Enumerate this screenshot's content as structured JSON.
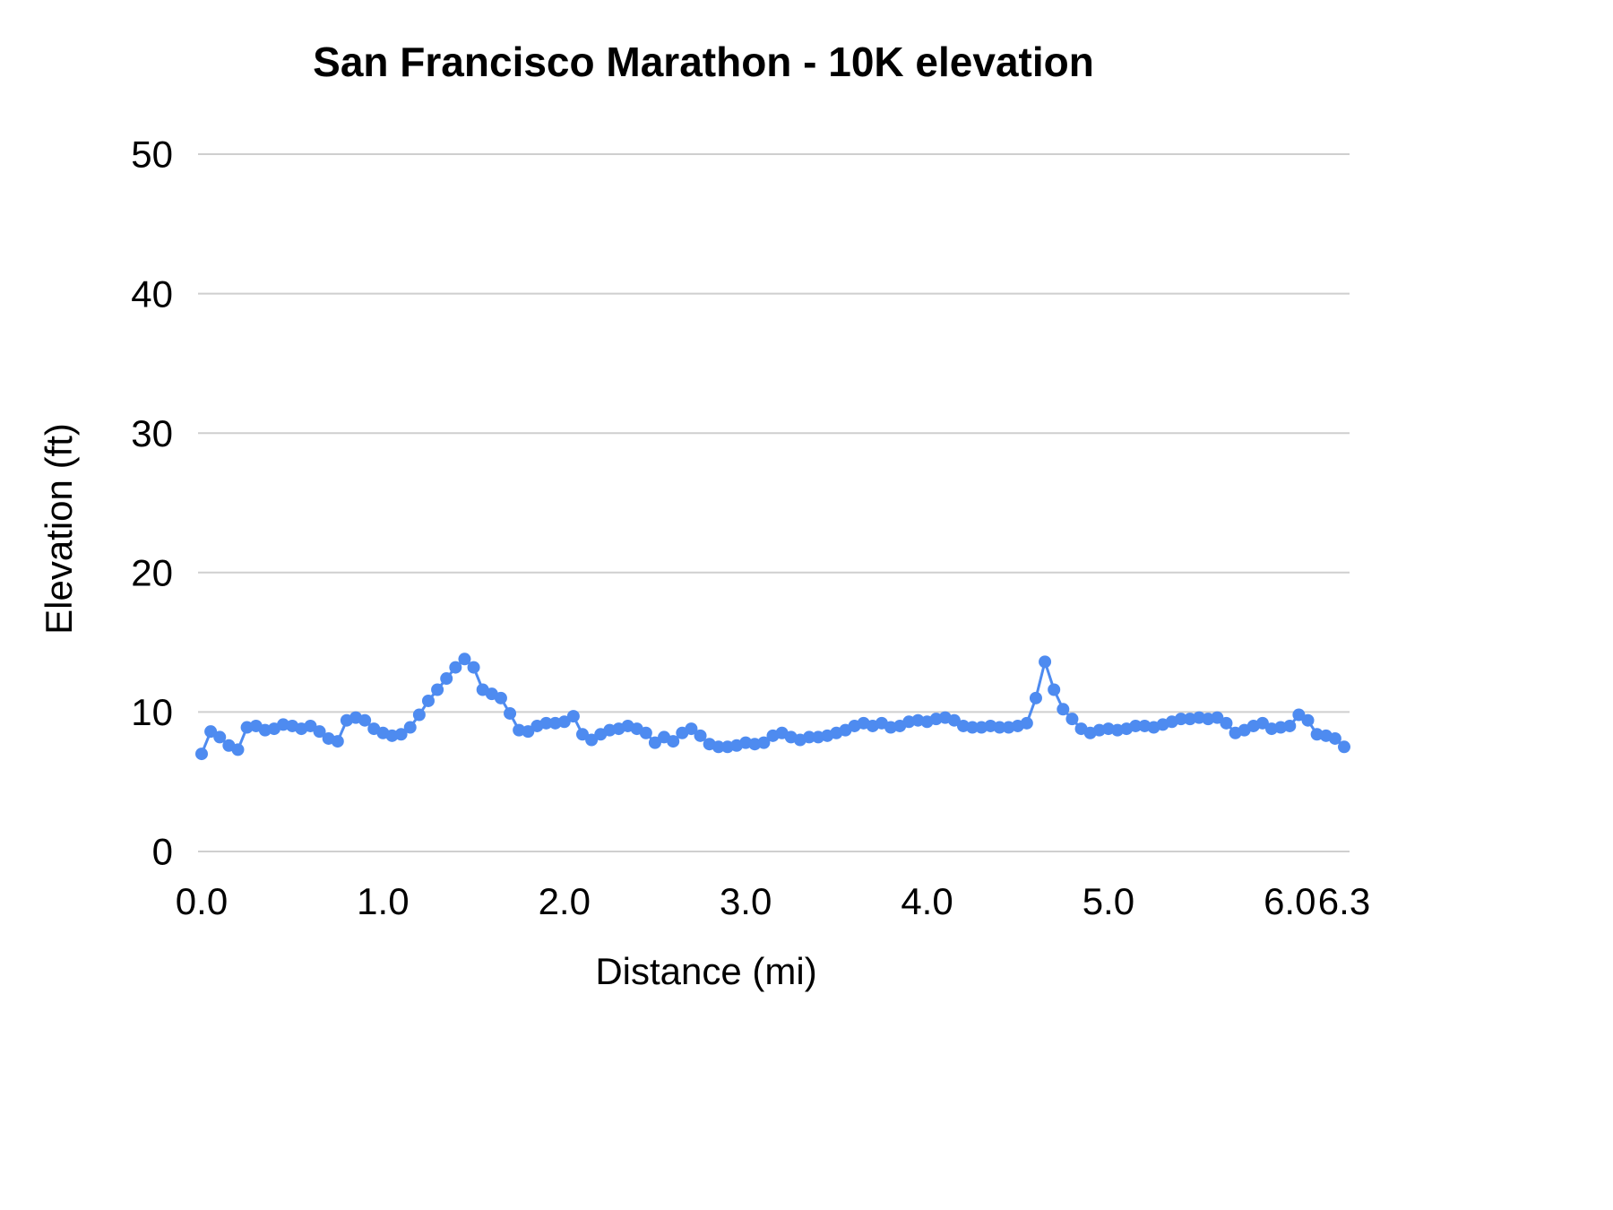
{
  "chart_data": {
    "type": "scatter",
    "title": "San Francisco Marathon - 10K elevation",
    "xlabel": "Distance (mi)",
    "ylabel": "Elevation (ft)",
    "xlim": [
      0,
      6.3
    ],
    "ylim": [
      0,
      50
    ],
    "xticks": [
      0,
      1,
      2,
      3,
      4,
      5,
      6,
      6.3
    ],
    "xtick_labels": [
      "0.0",
      "1.0",
      "2.0",
      "3.0",
      "4.0",
      "5.0",
      "6.0",
      "6.3"
    ],
    "yticks": [
      0,
      10,
      20,
      30,
      40,
      50
    ],
    "ytick_labels": [
      "0",
      "10",
      "20",
      "30",
      "40",
      "50"
    ],
    "grid": "horizontal",
    "legend": "none",
    "marker_color": "#4e8bf0",
    "line_color": "#4e8bf0",
    "gridline_color": "#cfcfcf",
    "text_color": "#000000",
    "series_name": "elevation",
    "x": [
      0,
      0.05,
      0.1,
      0.15,
      0.2,
      0.25,
      0.3,
      0.35,
      0.4,
      0.45,
      0.5,
      0.55,
      0.6,
      0.65,
      0.7,
      0.75,
      0.8,
      0.85,
      0.9,
      0.95,
      1,
      1.05,
      1.1,
      1.15,
      1.2,
      1.25,
      1.3,
      1.35,
      1.4,
      1.45,
      1.5,
      1.55,
      1.6,
      1.65,
      1.7,
      1.75,
      1.8,
      1.85,
      1.9,
      1.95,
      2,
      2.05,
      2.1,
      2.15,
      2.2,
      2.25,
      2.3,
      2.35,
      2.4,
      2.45,
      2.5,
      2.55,
      2.6,
      2.65,
      2.7,
      2.75,
      2.8,
      2.85,
      2.9,
      2.95,
      3,
      3.05,
      3.1,
      3.15,
      3.2,
      3.25,
      3.3,
      3.35,
      3.4,
      3.45,
      3.5,
      3.55,
      3.6,
      3.65,
      3.7,
      3.75,
      3.8,
      3.85,
      3.9,
      3.95,
      4,
      4.05,
      4.1,
      4.15,
      4.2,
      4.25,
      4.3,
      4.35,
      4.4,
      4.45,
      4.5,
      4.55,
      4.6,
      4.65,
      4.7,
      4.75,
      4.8,
      4.85,
      4.9,
      4.95,
      5,
      5.05,
      5.1,
      5.15,
      5.2,
      5.25,
      5.3,
      5.35,
      5.4,
      5.45,
      5.5,
      5.55,
      5.6,
      5.65,
      5.7,
      5.75,
      5.8,
      5.85,
      5.9,
      5.95,
      6,
      6.05,
      6.1,
      6.15,
      6.2,
      6.25,
      6.3
    ],
    "y": [
      7.0,
      8.6,
      8.2,
      7.6,
      7.3,
      8.9,
      9.0,
      8.7,
      8.8,
      9.1,
      9.0,
      8.8,
      9.0,
      8.6,
      8.1,
      7.9,
      9.4,
      9.6,
      9.4,
      8.8,
      8.5,
      8.3,
      8.4,
      8.9,
      9.8,
      10.8,
      11.6,
      12.4,
      13.2,
      13.8,
      13.2,
      11.6,
      11.3,
      11.0,
      9.9,
      8.7,
      8.6,
      9.0,
      9.2,
      9.2,
      9.3,
      9.7,
      8.4,
      8.0,
      8.4,
      8.7,
      8.8,
      9.0,
      8.8,
      8.5,
      7.8,
      8.2,
      7.9,
      8.5,
      8.8,
      8.3,
      7.7,
      7.5,
      7.5,
      7.6,
      7.8,
      7.7,
      7.8,
      8.3,
      8.5,
      8.2,
      8.0,
      8.2,
      8.2,
      8.3,
      8.5,
      8.7,
      9.0,
      9.2,
      9.0,
      9.2,
      8.9,
      9.0,
      9.3,
      9.4,
      9.3,
      9.5,
      9.6,
      9.4,
      9.0,
      8.9,
      8.9,
      9.0,
      8.9,
      8.9,
      9.0,
      9.2,
      11.0,
      13.6,
      11.6,
      10.2,
      9.5,
      8.8,
      8.5,
      8.7,
      8.8,
      8.7,
      8.8,
      9.0,
      9.0,
      8.9,
      9.1,
      9.3,
      9.5,
      9.5,
      9.6,
      9.5,
      9.6,
      9.2,
      8.5,
      8.7,
      9.0,
      9.2,
      8.8,
      8.9,
      9.0,
      9.8,
      9.4,
      8.4,
      8.3,
      8.1,
      7.5
    ]
  }
}
